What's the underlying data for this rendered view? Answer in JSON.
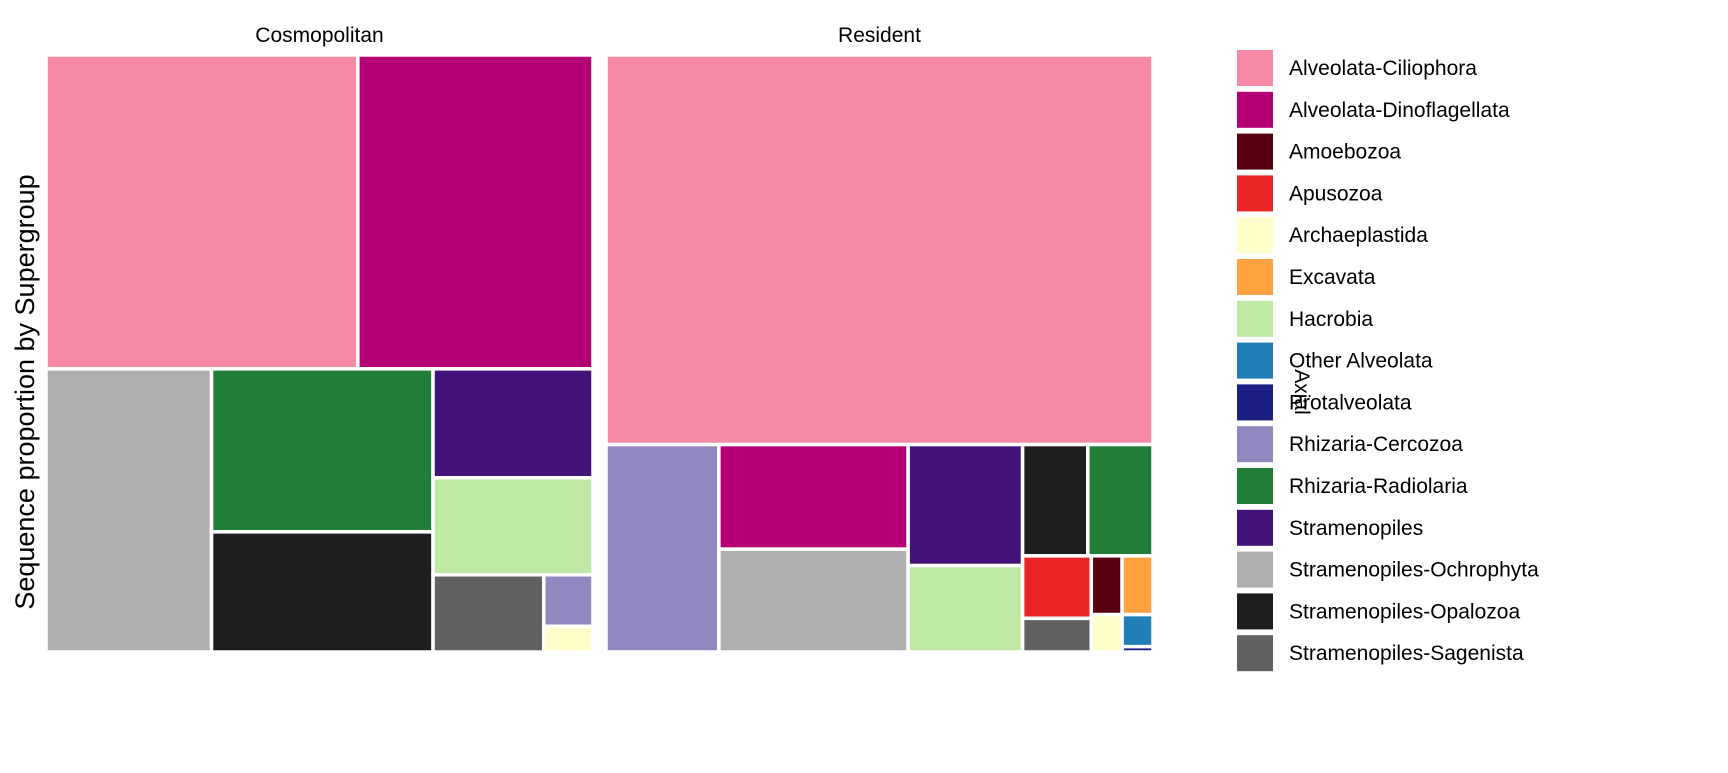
{
  "chart_data": {
    "type": "treemap",
    "ylabel": "Sequence proportion by Supergroup",
    "row_strip": "Axial",
    "panels": [
      {
        "title": "Cosmopolitan",
        "values": {
          "Alveolata-Ciliophora": 30.9,
          "Alveolata-Dinoflagellata": 23.3,
          "Stramenopiles-Ochrophyta": 14.8,
          "Rhizaria-Radiolaria": 11.4,
          "Stramenopiles-Opalozoa": 8.4,
          "Hacrobia": 4.9,
          "Stramenopiles": 5.5,
          "Stramenopiles-Sagenista": 2.7,
          "Rhizaria-Cercozoa": 0.8,
          "Archaeplastida": 0.4
        }
      },
      {
        "title": "Resident",
        "values": {
          "Alveolata-Ciliophora": 64.6,
          "Rhizaria-Cercozoa": 7.1,
          "Stramenopiles-Ochrophyta": 5.9,
          "Alveolata-Dinoflagellata": 6.0,
          "Stramenopiles": 4.2,
          "Hacrobia": 3.0,
          "Stramenopiles-Opalozoa": 2.2,
          "Apusozoa": 1.3,
          "Stramenopiles-Sagenista": 0.7,
          "Rhizaria-Radiolaria": 2.2,
          "Amoebozoa": 0.55,
          "Excavata": 0.55,
          "Archaeplastida": 0.35,
          "Other Alveolata": 0.3,
          "Protalveolata": 0.05
        }
      }
    ],
    "legend": {
      "position": "right",
      "entries": [
        {
          "name": "Alveolata-Ciliophora",
          "color": "#F58AA7"
        },
        {
          "name": "Alveolata-Dinoflagellata",
          "color": "#B50075"
        },
        {
          "name": "Amoebozoa",
          "color": "#570010"
        },
        {
          "name": "Apusozoa",
          "color": "#EB2426"
        },
        {
          "name": "Archaeplastida",
          "color": "#FFFFCC"
        },
        {
          "name": "Excavata",
          "color": "#FEA33F"
        },
        {
          "name": "Hacrobia",
          "color": "#BFE7A6"
        },
        {
          "name": "Other Alveolata",
          "color": "#1F7FB6"
        },
        {
          "name": "Protalveolata",
          "color": "#1B1E82"
        },
        {
          "name": "Rhizaria-Cercozoa",
          "color": "#8F89BF"
        },
        {
          "name": "Rhizaria-Radiolaria",
          "color": "#217E37"
        },
        {
          "name": "Stramenopiles",
          "color": "#43137A"
        },
        {
          "name": "Stramenopiles-Ochrophyta",
          "color": "#AFAFAF"
        },
        {
          "name": "Stramenopiles-Opalozoa",
          "color": "#1E1E1E"
        },
        {
          "name": "Stramenopiles-Sagenista",
          "color": "#616161"
        }
      ]
    }
  }
}
